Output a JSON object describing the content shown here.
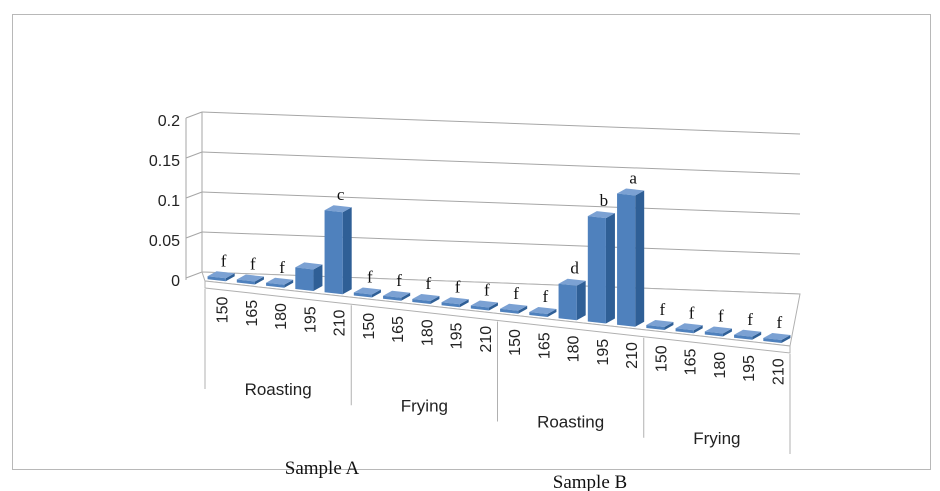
{
  "chart_data": {
    "type": "bar",
    "yticks": [
      "0",
      "0.05",
      "0.1",
      "0.15",
      "0.2"
    ],
    "ylim": [
      0,
      0.2
    ],
    "groups": [
      {
        "sample": "Sample A",
        "method": "Roasting",
        "temps": [
          "150",
          "165",
          "180",
          "195",
          "210"
        ],
        "values": [
          0,
          0,
          0,
          0.025,
          0.095
        ],
        "labels": [
          "f",
          "f",
          "f",
          "",
          "c"
        ]
      },
      {
        "sample": "Sample A",
        "method": "Frying",
        "temps": [
          "150",
          "165",
          "180",
          "195",
          "210"
        ],
        "values": [
          0,
          0,
          0,
          0,
          0
        ],
        "labels": [
          "f",
          "f",
          "f",
          "f",
          "f"
        ]
      },
      {
        "sample": "Sample B",
        "method": "Roasting",
        "temps": [
          "150",
          "165",
          "180",
          "195",
          "210"
        ],
        "values": [
          0,
          0,
          0.04,
          0.122,
          0.152
        ],
        "labels": [
          "f",
          "f",
          "d",
          "b",
          "a"
        ]
      },
      {
        "sample": "Sample B",
        "method": "Frying",
        "temps": [
          "150",
          "165",
          "180",
          "195",
          "210"
        ],
        "values": [
          0,
          0,
          0,
          0,
          0
        ],
        "labels": [
          "f",
          "f",
          "f",
          "f",
          "f"
        ]
      }
    ],
    "samples": [
      "Sample A",
      "Sample B"
    ],
    "grid": true,
    "bar_color": "#4F81BD"
  }
}
